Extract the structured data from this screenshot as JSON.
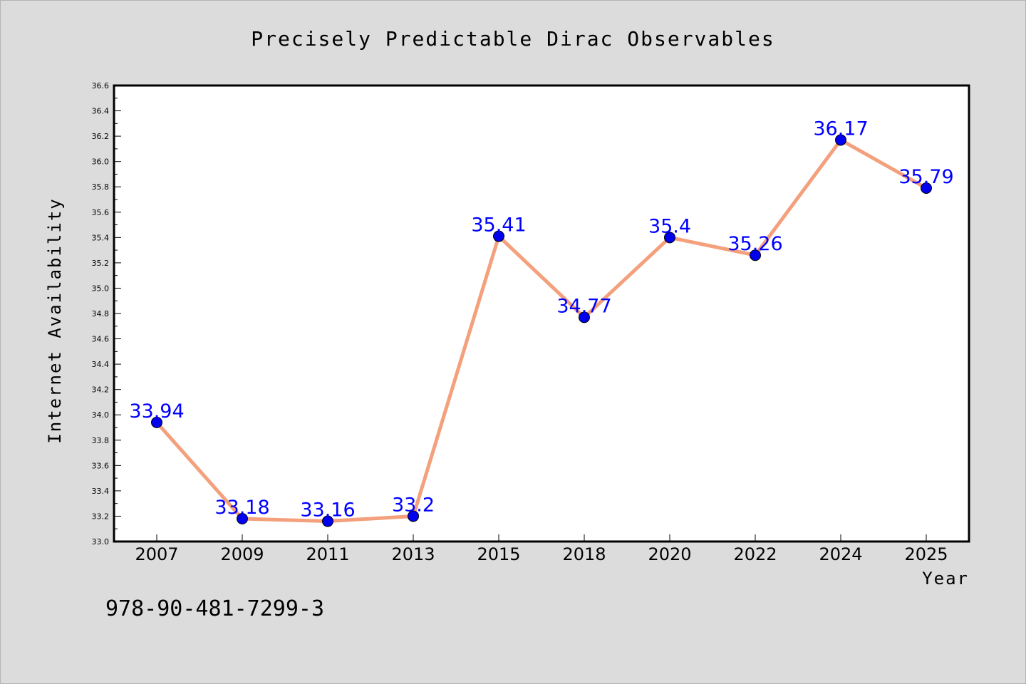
{
  "chart_data": {
    "type": "line",
    "title": "Precisely Predictable Dirac Observables",
    "xlabel": "Year",
    "ylabel": "Internet Availability",
    "categories": [
      "2007",
      "2009",
      "2011",
      "2013",
      "2015",
      "2018",
      "2020",
      "2022",
      "2024",
      "2025"
    ],
    "series": [
      {
        "values": [
          33.94,
          33.18,
          33.16,
          33.2,
          35.41,
          34.77,
          35.4,
          35.26,
          36.17,
          35.79
        ],
        "labels": [
          "33.94",
          "33.18",
          "33.16",
          "33.2",
          "35.41",
          "34.77",
          "35.4",
          "35.26",
          "36.17",
          "35.79"
        ],
        "line_color": "#f4a07c",
        "marker_color": "#0000ee"
      }
    ],
    "ylim": [
      33.0,
      36.6
    ],
    "yticks": [
      "33.0",
      "33.2",
      "33.4",
      "33.6",
      "33.8",
      "34.0",
      "34.2",
      "34.4",
      "34.6",
      "34.8",
      "35.0",
      "35.2",
      "35.4",
      "35.6",
      "35.8",
      "36.0",
      "36.2",
      "36.4",
      "36.6"
    ],
    "grid": false,
    "label_color": "#0000ff"
  },
  "footer": {
    "isbn": "978-90-481-7299-3"
  }
}
